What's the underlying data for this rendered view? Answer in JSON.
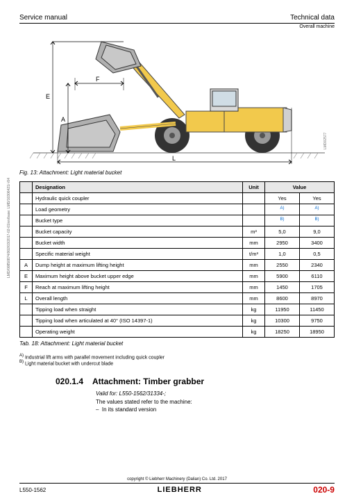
{
  "header": {
    "left": "Service manual",
    "right": "Technical data",
    "sub": "Overall machine"
  },
  "diagram": {
    "labels": {
      "A": "A",
      "E": "E",
      "F": "F",
      "L": "L"
    },
    "body_color": "#f2c94c",
    "tire_color": "#333333",
    "ground_color": "#666666",
    "side_ref": "LMD02577"
  },
  "fig_caption": "Fig. 13: Attachment: Light material bucket",
  "table": {
    "headers": {
      "designation": "Designation",
      "unit": "Unit",
      "value": "Value"
    },
    "rows": [
      {
        "letter": "",
        "desig": "Hydraulic quick coupler",
        "unit": "",
        "v1": "Yes",
        "v2": "Yes"
      },
      {
        "letter": "",
        "desig": "Load geometry",
        "unit": "",
        "v1": "A)",
        "v2": "A)",
        "blue": true
      },
      {
        "letter": "",
        "desig": "Bucket type",
        "unit": "",
        "v1": "B)",
        "v2": "B)",
        "blue": true
      },
      {
        "letter": "",
        "desig": "Bucket capacity",
        "unit": "m³",
        "v1": "5,0",
        "v2": "9,0"
      },
      {
        "letter": "",
        "desig": "Bucket width",
        "unit": "mm",
        "v1": "2950",
        "v2": "3400"
      },
      {
        "letter": "",
        "desig": "Specific material weight",
        "unit": "t/m³",
        "v1": "1,0",
        "v2": "0,5"
      },
      {
        "letter": "A",
        "desig": "Dump height at maximum lifting height",
        "unit": "mm",
        "v1": "2550",
        "v2": "2340"
      },
      {
        "letter": "E",
        "desig": "Maximum height above bucket upper edge",
        "unit": "mm",
        "v1": "5900",
        "v2": "6110"
      },
      {
        "letter": "F",
        "desig": "Reach at maximum lifting height",
        "unit": "mm",
        "v1": "1450",
        "v2": "1705"
      },
      {
        "letter": "L",
        "desig": "Overall length",
        "unit": "mm",
        "v1": "8600",
        "v2": "8970"
      },
      {
        "letter": "",
        "desig": "Tipping load when straight",
        "unit": "kg",
        "v1": "11950",
        "v2": "11450"
      },
      {
        "letter": "",
        "desig": "Tipping load when articulated at 40° (ISO 14397-1)",
        "unit": "kg",
        "v1": "10300",
        "v2": "9750"
      },
      {
        "letter": "",
        "desig": "Operating weight",
        "unit": "kg",
        "v1": "18250",
        "v2": "18950"
      }
    ]
  },
  "tab_caption": "Tab. 18: Attachment: Light material bucket",
  "footnotes": {
    "a": "Industrial lift arms with parallel movement including quick coupler",
    "b": "Light material bucket with undercut blade"
  },
  "section": {
    "number": "020.1.4",
    "title": "Attachment: Timber grabber",
    "valid_for": "Valid for: L550-1562/31334-;",
    "values_ref": "The values stated refer to the machine:",
    "std": "In its standard version"
  },
  "footer": {
    "copyright": "copyright © Liebherr Machinery (Dalian) Co. Ltd. 2017",
    "left": "L550-1562",
    "center": "LIEBHERR",
    "right": "020-9"
  },
  "side_text": "LMD/00850874/002/03/2017-02-01/en/base: LMD/10306421/-/04"
}
